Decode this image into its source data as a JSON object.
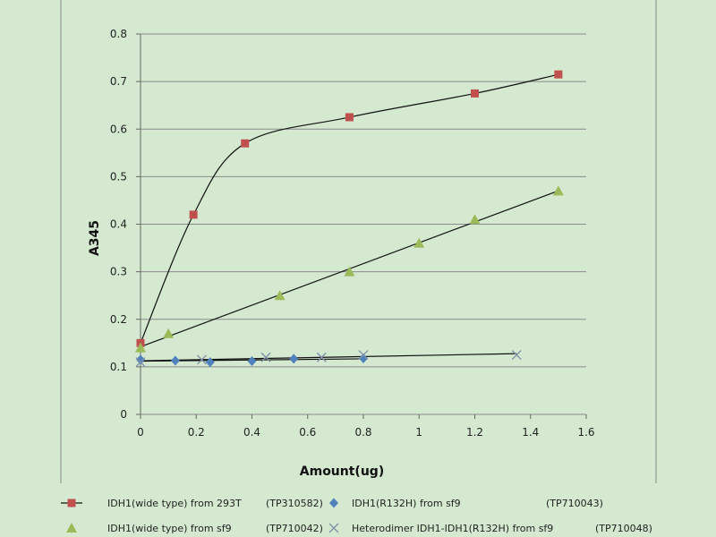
{
  "chart_data": {
    "type": "scatter",
    "xlabel": "Amount(ug)",
    "ylabel": "A345",
    "xlim": [
      0,
      1.6
    ],
    "ylim": [
      0,
      0.8
    ],
    "xticks": [
      "0",
      "0.2",
      "0.4",
      "0.6",
      "0.8",
      "1",
      "1.2",
      "1.4",
      "1.6"
    ],
    "yticks": [
      "0",
      "0.1",
      "0.2",
      "0.3",
      "0.4",
      "0.5",
      "0.6",
      "0.7",
      "0.8"
    ],
    "grid": "horizontal",
    "legend": "bottom",
    "series": [
      {
        "name": "IDH1(wide type) from 293T",
        "code": "(TP310582)",
        "marker": "square",
        "color": "#c0504d",
        "fit": "smooth",
        "x": [
          0,
          0.19,
          0.375,
          0.75,
          1.2,
          1.5
        ],
        "y": [
          0.15,
          0.42,
          0.57,
          0.625,
          0.675,
          0.715
        ]
      },
      {
        "name": "IDH1(R132H) from sf9",
        "code": "(TP710043)",
        "marker": "diamond",
        "color": "#4f81bd",
        "fit": "linear",
        "x": [
          0,
          0.125,
          0.25,
          0.4,
          0.55,
          0.8
        ],
        "y": [
          0.115,
          0.113,
          0.11,
          0.112,
          0.117,
          0.118
        ]
      },
      {
        "name": "IDH1(wide type) from sf9",
        "code": "(TP710042)",
        "marker": "triangle",
        "color": "#9bbb59",
        "fit": "linear",
        "x": [
          0,
          0.1,
          0.5,
          0.75,
          1.0,
          1.2,
          1.5
        ],
        "y": [
          0.14,
          0.17,
          0.25,
          0.3,
          0.36,
          0.41,
          0.47
        ]
      },
      {
        "name": "Heterodimer IDH1-IDH1(R132H) from sf9",
        "code": "(TP710048)",
        "marker": "x",
        "color": "#7f8fa6",
        "fit": "linear",
        "x": [
          0,
          0.22,
          0.45,
          0.65,
          0.8,
          1.35
        ],
        "y": [
          0.11,
          0.115,
          0.12,
          0.12,
          0.125,
          0.125
        ]
      }
    ]
  }
}
